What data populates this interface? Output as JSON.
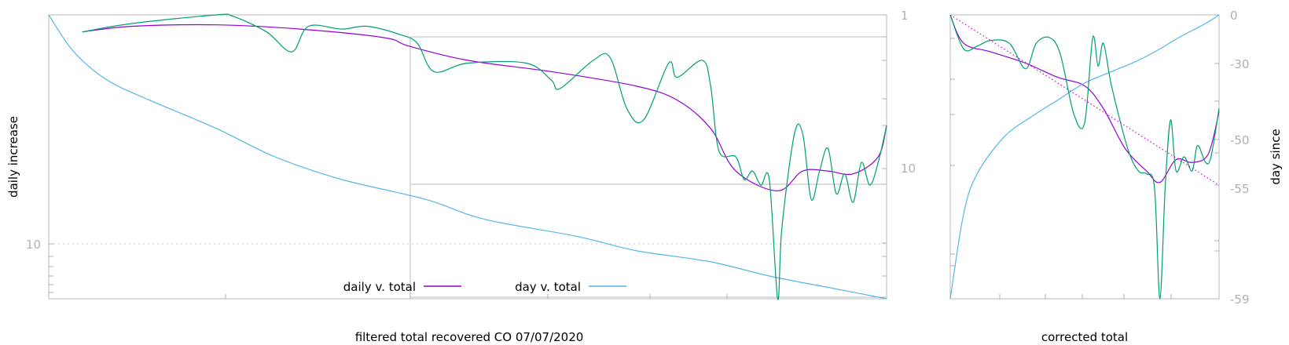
{
  "chart_data": [
    {
      "type": "line",
      "xlabel": "filtered total recovered CO 07/07/2020",
      "ylabel": "daily increase",
      "yscale": "log",
      "y_ticks": [
        "10"
      ],
      "y2_ticks": [
        "1",
        "10"
      ],
      "grid": "dotted line at 10",
      "legend_placement": "bottom-center",
      "legend": [
        "daily v. total",
        "day v. total"
      ],
      "series": [
        {
          "name": "daily v. total",
          "color": "#9400d3",
          "points": [
            [
              0.04,
              0.06
            ],
            [
              0.1,
              0.04
            ],
            [
              0.2,
              0.035
            ],
            [
              0.3,
              0.05
            ],
            [
              0.4,
              0.08
            ],
            [
              0.43,
              0.11
            ],
            [
              0.5,
              0.16
            ],
            [
              0.6,
              0.2
            ],
            [
              0.7,
              0.25
            ],
            [
              0.75,
              0.3
            ],
            [
              0.79,
              0.4
            ],
            [
              0.82,
              0.55
            ],
            [
              0.87,
              0.62
            ],
            [
              0.9,
              0.55
            ],
            [
              0.93,
              0.55
            ],
            [
              0.96,
              0.56
            ],
            [
              0.99,
              0.5
            ],
            [
              1.0,
              0.39
            ]
          ]
        },
        {
          "name": "day v. total",
          "color": "#56b4e9",
          "points": [
            [
              0.0,
              0.0
            ],
            [
              0.03,
              0.13
            ],
            [
              0.07,
              0.23
            ],
            [
              0.12,
              0.3
            ],
            [
              0.2,
              0.4
            ],
            [
              0.27,
              0.5
            ],
            [
              0.35,
              0.58
            ],
            [
              0.45,
              0.65
            ],
            [
              0.52,
              0.72
            ],
            [
              0.63,
              0.78
            ],
            [
              0.7,
              0.83
            ],
            [
              0.79,
              0.87
            ],
            [
              0.86,
              0.92
            ],
            [
              0.93,
              0.96
            ],
            [
              1.0,
              1.0
            ]
          ]
        },
        {
          "name": "",
          "color": "#009e73",
          "points": [
            [
              0.04,
              0.06
            ],
            [
              0.1,
              0.03
            ],
            [
              0.2,
              0.0
            ],
            [
              0.22,
              0.005
            ],
            [
              0.26,
              0.06
            ],
            [
              0.29,
              0.13
            ],
            [
              0.31,
              0.04
            ],
            [
              0.35,
              0.05
            ],
            [
              0.38,
              0.04
            ],
            [
              0.42,
              0.07
            ],
            [
              0.44,
              0.1
            ],
            [
              0.46,
              0.2
            ],
            [
              0.5,
              0.17
            ],
            [
              0.57,
              0.17
            ],
            [
              0.6,
              0.23
            ],
            [
              0.61,
              0.26
            ],
            [
              0.65,
              0.16
            ],
            [
              0.67,
              0.15
            ],
            [
              0.69,
              0.33
            ],
            [
              0.71,
              0.37
            ],
            [
              0.74,
              0.17
            ],
            [
              0.75,
              0.22
            ],
            [
              0.78,
              0.16
            ],
            [
              0.79,
              0.25
            ],
            [
              0.8,
              0.48
            ],
            [
              0.82,
              0.5
            ],
            [
              0.83,
              0.58
            ],
            [
              0.84,
              0.55
            ],
            [
              0.85,
              0.6
            ],
            [
              0.86,
              0.58
            ],
            [
              0.87,
              1.0
            ],
            [
              0.875,
              0.75
            ],
            [
              0.89,
              0.42
            ],
            [
              0.9,
              0.42
            ],
            [
              0.91,
              0.65
            ],
            [
              0.92,
              0.55
            ],
            [
              0.93,
              0.47
            ],
            [
              0.94,
              0.63
            ],
            [
              0.95,
              0.56
            ],
            [
              0.96,
              0.66
            ],
            [
              0.97,
              0.52
            ],
            [
              0.98,
              0.6
            ],
            [
              0.99,
              0.52
            ],
            [
              1.0,
              0.39
            ]
          ]
        }
      ]
    },
    {
      "type": "line",
      "xlabel": "corrected total",
      "ylabel": "day since",
      "yscale": "log",
      "y2_ticks": [
        "0",
        "-30",
        "-50",
        "-55",
        "-59"
      ],
      "series": [
        {
          "name": "",
          "color": "#9400d3",
          "points": [
            [
              0.0,
              0.0
            ],
            [
              0.05,
              0.1
            ],
            [
              0.15,
              0.13
            ],
            [
              0.28,
              0.17
            ],
            [
              0.4,
              0.22
            ],
            [
              0.5,
              0.25
            ],
            [
              0.57,
              0.33
            ],
            [
              0.65,
              0.47
            ],
            [
              0.73,
              0.55
            ],
            [
              0.78,
              0.59
            ],
            [
              0.84,
              0.51
            ],
            [
              0.9,
              0.52
            ],
            [
              0.96,
              0.49
            ],
            [
              1.0,
              0.34
            ]
          ]
        },
        {
          "name": "",
          "color": "#56b4e9",
          "points": [
            [
              0.0,
              1.0
            ],
            [
              0.05,
              0.7
            ],
            [
              0.1,
              0.56
            ],
            [
              0.2,
              0.43
            ],
            [
              0.3,
              0.36
            ],
            [
              0.4,
              0.3
            ],
            [
              0.5,
              0.24
            ],
            [
              0.6,
              0.2
            ],
            [
              0.7,
              0.16
            ],
            [
              0.78,
              0.12
            ],
            [
              0.85,
              0.08
            ],
            [
              0.95,
              0.03
            ],
            [
              1.0,
              0.0
            ]
          ]
        },
        {
          "name": "",
          "color": "#009e73",
          "points": [
            [
              0.0,
              0.0
            ],
            [
              0.05,
              0.12
            ],
            [
              0.1,
              0.11
            ],
            [
              0.15,
              0.09
            ],
            [
              0.22,
              0.1
            ],
            [
              0.28,
              0.19
            ],
            [
              0.32,
              0.1
            ],
            [
              0.37,
              0.08
            ],
            [
              0.41,
              0.14
            ],
            [
              0.46,
              0.35
            ],
            [
              0.5,
              0.38
            ],
            [
              0.53,
              0.08
            ],
            [
              0.55,
              0.18
            ],
            [
              0.57,
              0.1
            ],
            [
              0.6,
              0.25
            ],
            [
              0.66,
              0.47
            ],
            [
              0.7,
              0.55
            ],
            [
              0.73,
              0.56
            ],
            [
              0.76,
              0.61
            ],
            [
              0.78,
              1.0
            ],
            [
              0.8,
              0.6
            ],
            [
              0.82,
              0.37
            ],
            [
              0.84,
              0.55
            ],
            [
              0.87,
              0.5
            ],
            [
              0.9,
              0.55
            ],
            [
              0.92,
              0.46
            ],
            [
              0.95,
              0.52
            ],
            [
              0.97,
              0.5
            ],
            [
              1.0,
              0.33
            ]
          ]
        },
        {
          "name": "",
          "color": "#d400d4",
          "style": "dotted",
          "points": [
            [
              0.0,
              0.0
            ],
            [
              1.0,
              0.6
            ]
          ]
        }
      ]
    }
  ]
}
